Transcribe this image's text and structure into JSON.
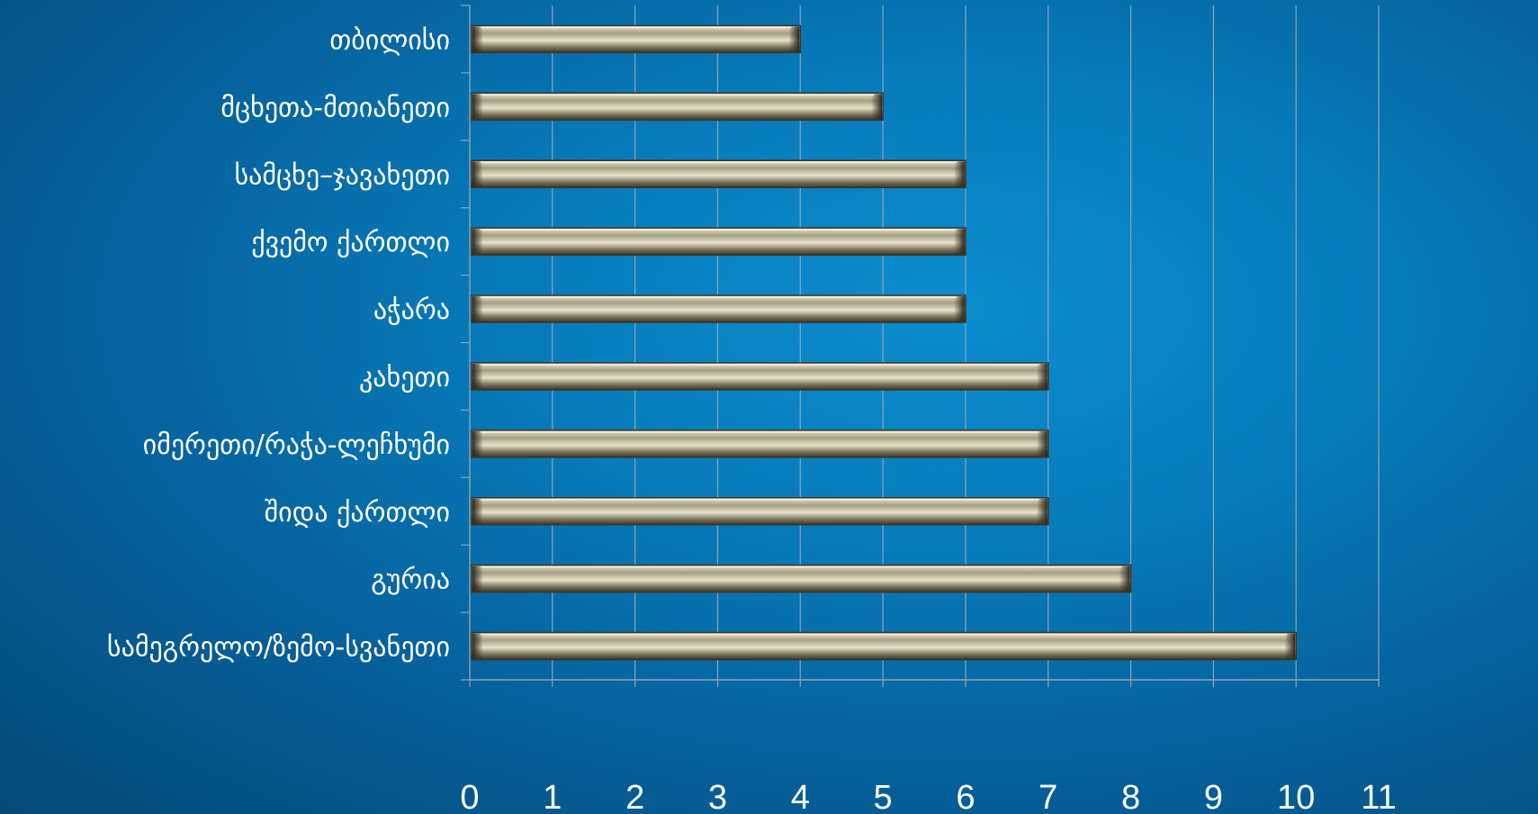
{
  "chart_data": {
    "type": "bar",
    "orientation": "horizontal",
    "categories": [
      "თბილისი",
      "მცხეთა-მთიანეთი",
      "სამცხე–ჯავახეთი",
      "ქვემო ქართლი",
      "აჭარა",
      "კახეთი",
      "იმერეთი/რაჭა-ლეჩხუმი",
      "შიდა ქართლი",
      "გურია",
      "სამეგრელო/ზემო-სვანეთი"
    ],
    "values": [
      4,
      5,
      6,
      6,
      6,
      7,
      7,
      7,
      8,
      10
    ],
    "xlim": [
      0,
      11
    ],
    "xticks": [
      "0",
      "1",
      "2",
      "3",
      "4",
      "5",
      "6",
      "7",
      "8",
      "9",
      "10",
      "11"
    ],
    "grid": true,
    "legend": "none",
    "colors": {
      "bar_face": "#c9c2a6",
      "bar_edge": "#3b3526",
      "grid": "#8fa4b4",
      "text": "#ffffff"
    }
  }
}
